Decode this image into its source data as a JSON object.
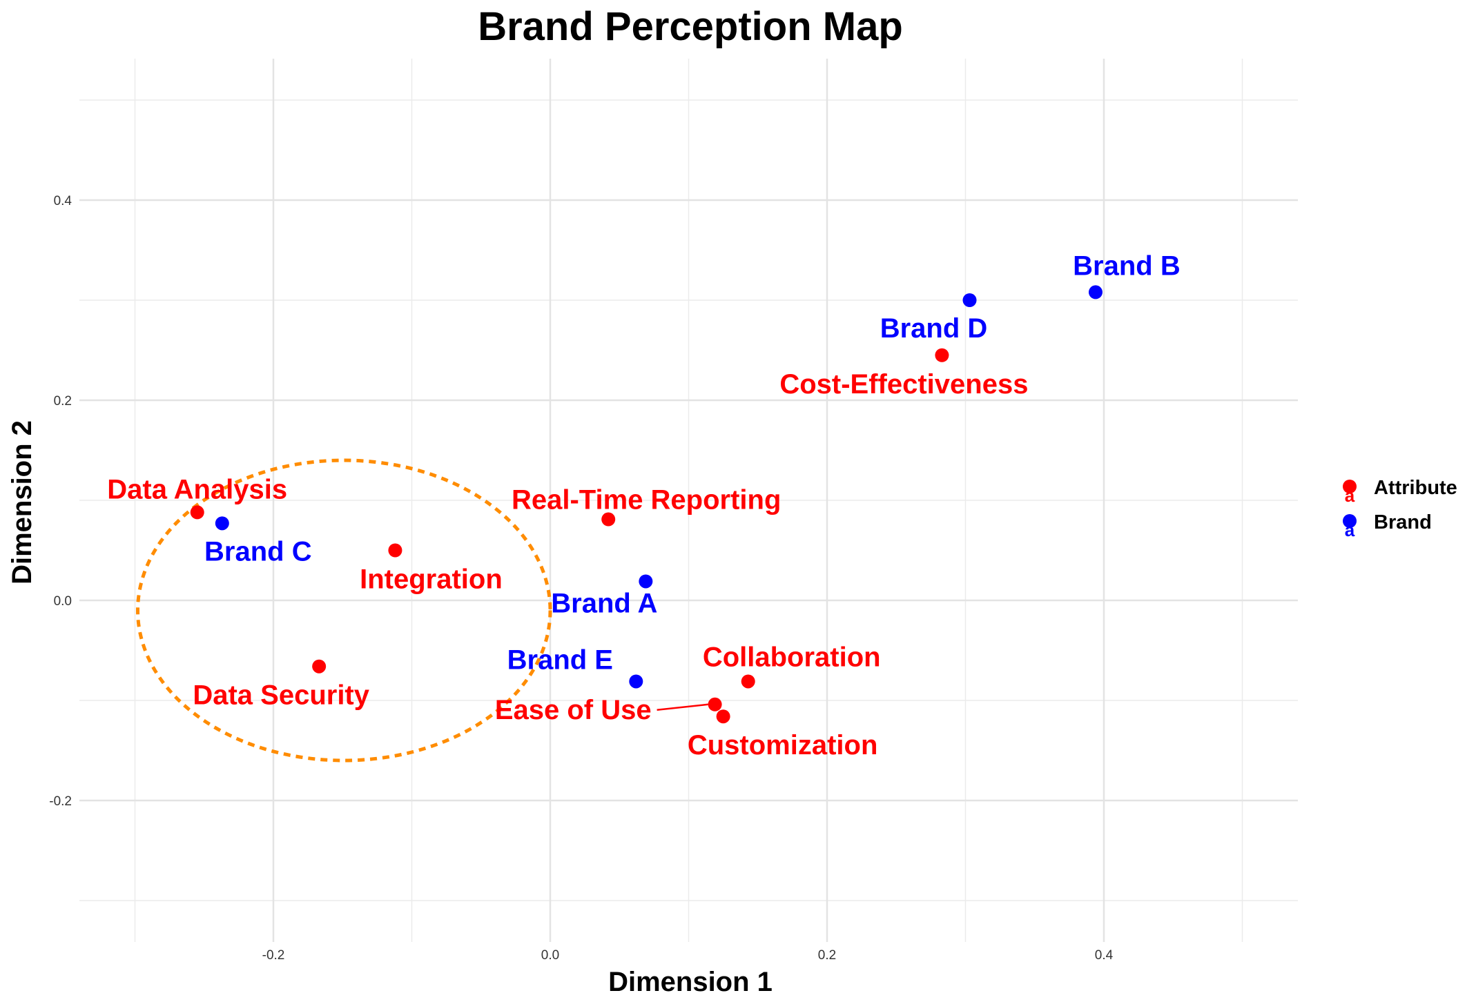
{
  "chart_data": {
    "type": "scatter",
    "title": "Brand Perception Map",
    "xlabel": "Dimension 1",
    "ylabel": "Dimension 2",
    "xlim": [
      -0.34,
      0.54
    ],
    "ylim": [
      -0.33,
      0.54
    ],
    "x_ticks": [
      -0.2,
      0.0,
      0.2,
      0.4
    ],
    "x_tick_labels": [
      "-0.2",
      "0.0",
      "0.2",
      "0.4"
    ],
    "y_ticks": [
      -0.2,
      0.0,
      0.2,
      0.4
    ],
    "y_tick_labels": [
      "-0.2",
      "0.0",
      "0.2",
      "0.4"
    ],
    "x_minor": [
      -0.3,
      -0.1,
      0.1,
      0.3,
      0.5
    ],
    "y_minor": [
      -0.3,
      -0.1,
      0.1,
      0.3,
      0.5
    ],
    "grid": true,
    "legend_position": "right",
    "legend": [
      {
        "label": "Attribute",
        "key_text": "a",
        "color": "#ff0000"
      },
      {
        "label": "Brand",
        "key_text": "a",
        "color": "#0000ff"
      }
    ],
    "colors": {
      "Attribute": "#ff0000",
      "Brand": "#0000ff",
      "ellipse": "#ff8c00"
    },
    "points": [
      {
        "label": "Brand A",
        "type": "Brand",
        "x": 0.069,
        "y": 0.019
      },
      {
        "label": "Brand B",
        "type": "Brand",
        "x": 0.394,
        "y": 0.308
      },
      {
        "label": "Brand C",
        "type": "Brand",
        "x": -0.237,
        "y": 0.077
      },
      {
        "label": "Brand D",
        "type": "Brand",
        "x": 0.303,
        "y": 0.3
      },
      {
        "label": "Brand E",
        "type": "Brand",
        "x": 0.062,
        "y": -0.081
      },
      {
        "label": "Data Analysis",
        "type": "Attribute",
        "x": -0.255,
        "y": 0.088
      },
      {
        "label": "Integration",
        "type": "Attribute",
        "x": -0.112,
        "y": 0.05
      },
      {
        "label": "Real-Time Reporting",
        "type": "Attribute",
        "x": 0.042,
        "y": 0.081
      },
      {
        "label": "Data Security",
        "type": "Attribute",
        "x": -0.167,
        "y": -0.066
      },
      {
        "label": "Collaboration",
        "type": "Attribute",
        "x": 0.143,
        "y": -0.081
      },
      {
        "label": "Ease of Use",
        "type": "Attribute",
        "x": 0.119,
        "y": -0.104
      },
      {
        "label": "Customization",
        "type": "Attribute",
        "x": 0.125,
        "y": -0.116
      },
      {
        "label": "Cost-Effectiveness",
        "type": "Attribute",
        "x": 0.283,
        "y": 0.245
      }
    ],
    "annotation": {
      "type": "ellipse",
      "style": "dashed",
      "color": "#ff8c00",
      "cx": -0.149,
      "cy": -0.01,
      "rx": 0.149,
      "ry": 0.15
    }
  }
}
